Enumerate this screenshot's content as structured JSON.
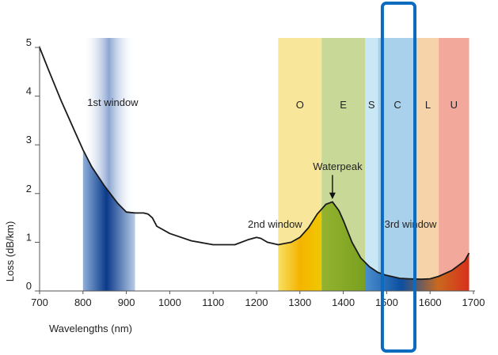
{
  "chart_data": {
    "type": "line",
    "title": "",
    "xlabel": "Wavelengths (nm)",
    "ylabel": "Loss (dB/km)",
    "xlim": [
      700,
      1700
    ],
    "ylim": [
      0,
      5
    ],
    "x_ticks": [
      "700",
      "800",
      "900",
      "1000",
      "1100",
      "1200",
      "1300",
      "1400",
      "1500",
      "1600",
      "1700"
    ],
    "y_ticks": [
      "0",
      "1",
      "2",
      "3",
      "4",
      "5"
    ],
    "x_tick_values": [
      700,
      800,
      900,
      1000,
      1100,
      1200,
      1300,
      1400,
      1500,
      1600,
      1700
    ],
    "y_tick_values": [
      0,
      1,
      2,
      3,
      4,
      5
    ],
    "grid": false,
    "series": [
      {
        "x": [
          700,
          720,
          750,
          780,
          800,
          820,
          850,
          880,
          900,
          920,
          940,
          950,
          960,
          970,
          1000,
          1050,
          1100,
          1150,
          1180,
          1200,
          1210,
          1225,
          1250,
          1280,
          1300,
          1320,
          1340,
          1360,
          1375,
          1390,
          1400,
          1420,
          1440,
          1460,
          1480,
          1500,
          1530,
          1550,
          1580,
          1600,
          1620,
          1650,
          1680,
          1690
        ],
        "y": [
          5.0,
          4.55,
          3.9,
          3.3,
          2.9,
          2.55,
          2.15,
          1.8,
          1.62,
          1.6,
          1.6,
          1.58,
          1.5,
          1.33,
          1.18,
          1.03,
          0.95,
          0.95,
          1.05,
          1.1,
          1.08,
          1.0,
          0.95,
          1.0,
          1.1,
          1.3,
          1.58,
          1.78,
          1.83,
          1.65,
          1.45,
          1.0,
          0.68,
          0.5,
          0.38,
          0.32,
          0.26,
          0.25,
          0.24,
          0.25,
          0.3,
          0.42,
          0.62,
          0.78
        ],
        "color": "#1a1a1a"
      }
    ],
    "bands": [
      {
        "label": "",
        "from": 800,
        "to": 920,
        "color": "#1f4f9e"
      },
      {
        "label": "O",
        "from": 1250,
        "to": 1350,
        "color": "#f6df7a"
      },
      {
        "label": "E",
        "from": 1350,
        "to": 1450,
        "color": "#b6cc74"
      },
      {
        "label": "S",
        "from": 1450,
        "to": 1480,
        "color": "#b8dff2"
      },
      {
        "label": "C",
        "from": 1480,
        "to": 1570,
        "color": "#8cc1e4"
      },
      {
        "label": "L",
        "from": 1570,
        "to": 1620,
        "color": "#f3c48b"
      },
      {
        "label": "U",
        "from": 1620,
        "to": 1690,
        "color": "#ee8b78"
      }
    ],
    "annotations": [
      {
        "text": "1st window",
        "x": 810,
        "y": 3.8
      },
      {
        "text": "2nd window",
        "x": 1180,
        "y": 1.3
      },
      {
        "text": "3rd window",
        "x": 1495,
        "y": 1.3
      },
      {
        "text": "Waterpeak",
        "x": 1330,
        "y": 2.48
      }
    ],
    "highlight": {
      "from": 1490,
      "to": 1565,
      "color": "#0a6bbf"
    }
  }
}
